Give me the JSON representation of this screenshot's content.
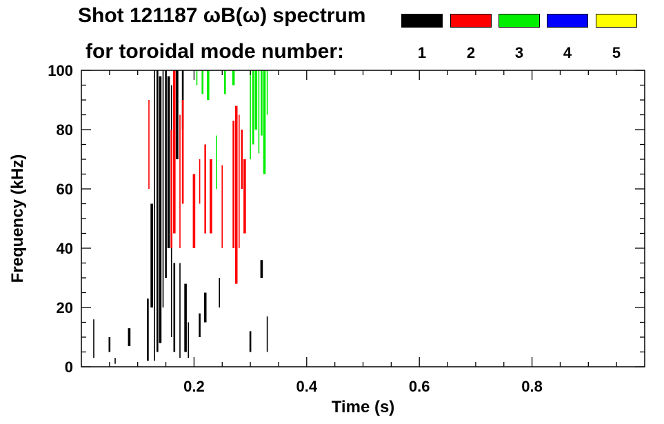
{
  "title": {
    "line1": "Shot 121187 ωB(ω) spectrum",
    "line2": "for toroidal mode number:"
  },
  "legend": [
    {
      "label": "1",
      "color": "#000000"
    },
    {
      "label": "2",
      "color": "#ff0000"
    },
    {
      "label": "3",
      "color": "#00ee00"
    },
    {
      "label": "4",
      "color": "#0000ff"
    },
    {
      "label": "5",
      "color": "#ffff00"
    }
  ],
  "chart_data": {
    "type": "heatmap",
    "xlabel": "Time (s)",
    "ylabel": "Frequency (kHz)",
    "xlim": [
      0.0,
      1.0
    ],
    "ylim": [
      0,
      100
    ],
    "xticks": [
      0.2,
      0.4,
      0.6,
      0.8
    ],
    "yticks": [
      0,
      20,
      40,
      60,
      80,
      100
    ],
    "grid": false,
    "legend_position": "top-right",
    "series": [
      {
        "mode": "1",
        "color": "#000000",
        "segments": [
          [
            0.022,
            3,
            16
          ],
          [
            0.05,
            5,
            10
          ],
          [
            0.085,
            7,
            13
          ],
          [
            0.06,
            1,
            3
          ],
          [
            0.118,
            2,
            23
          ],
          [
            0.125,
            20,
            55
          ],
          [
            0.13,
            2,
            100
          ],
          [
            0.135,
            5,
            100
          ],
          [
            0.14,
            8,
            98
          ],
          [
            0.145,
            20,
            100
          ],
          [
            0.15,
            30,
            100
          ],
          [
            0.155,
            40,
            98
          ],
          [
            0.16,
            10,
            95
          ],
          [
            0.165,
            5,
            35
          ],
          [
            0.17,
            70,
            100
          ],
          [
            0.175,
            3,
            35
          ],
          [
            0.18,
            80,
            100
          ],
          [
            0.185,
            5,
            28
          ],
          [
            0.19,
            3,
            15
          ],
          [
            0.21,
            10,
            18
          ],
          [
            0.22,
            15,
            25
          ],
          [
            0.245,
            20,
            30
          ],
          [
            0.3,
            5,
            12
          ],
          [
            0.32,
            30,
            36
          ],
          [
            0.33,
            5,
            17
          ]
        ]
      },
      {
        "mode": "2",
        "color": "#ff0000",
        "segments": [
          [
            0.12,
            60,
            90
          ],
          [
            0.16,
            40,
            80
          ],
          [
            0.165,
            45,
            100
          ],
          [
            0.175,
            40,
            85
          ],
          [
            0.18,
            55,
            90
          ],
          [
            0.2,
            40,
            65
          ],
          [
            0.21,
            55,
            70
          ],
          [
            0.22,
            45,
            75
          ],
          [
            0.23,
            45,
            70
          ],
          [
            0.25,
            40,
            68
          ],
          [
            0.27,
            40,
            83
          ],
          [
            0.275,
            28,
            88
          ],
          [
            0.28,
            40,
            85
          ],
          [
            0.285,
            60,
            80
          ],
          [
            0.29,
            45,
            70
          ]
        ]
      },
      {
        "mode": "3",
        "color": "#00ee00",
        "segments": [
          [
            0.205,
            95,
            100
          ],
          [
            0.215,
            92,
            100
          ],
          [
            0.225,
            90,
            100
          ],
          [
            0.24,
            60,
            78
          ],
          [
            0.255,
            92,
            100
          ],
          [
            0.27,
            95,
            100
          ],
          [
            0.3,
            70,
            100
          ],
          [
            0.305,
            75,
            100
          ],
          [
            0.31,
            80,
            100
          ],
          [
            0.315,
            72,
            100
          ],
          [
            0.32,
            78,
            100
          ],
          [
            0.325,
            65,
            100
          ],
          [
            0.33,
            85,
            100
          ]
        ]
      },
      {
        "mode": "4",
        "color": "#0000ff",
        "segments": []
      },
      {
        "mode": "5",
        "color": "#ffff00",
        "segments": []
      }
    ]
  }
}
